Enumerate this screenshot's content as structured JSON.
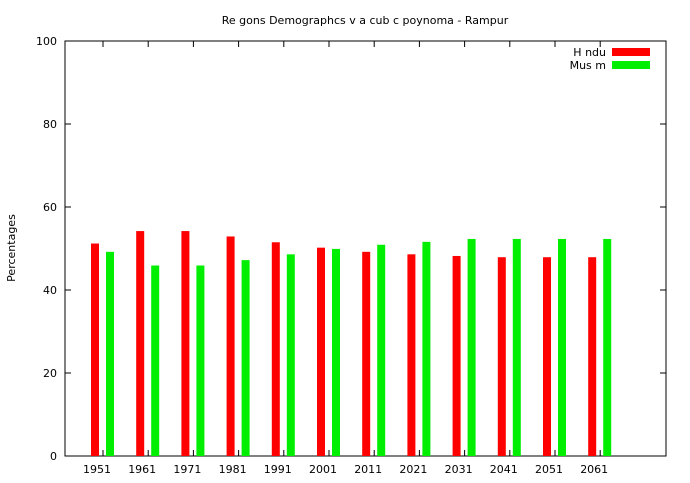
{
  "chart_data": {
    "type": "bar",
    "title": "Re gons Demographcs v a cub c poynoma - Rampur",
    "ylabel": "Percentages",
    "xlabel": "",
    "ylim": [
      0,
      100
    ],
    "yticks": [
      0,
      20,
      40,
      60,
      80,
      100
    ],
    "categories": [
      "1951",
      "1961",
      "1971",
      "1981",
      "1991",
      "2001",
      "2011",
      "2021",
      "2031",
      "2041",
      "2051",
      "2061"
    ],
    "legend_position": "top-right",
    "grid": false,
    "series": [
      {
        "name": "H ndu",
        "color": "#ff0000",
        "values": [
          51.2,
          54.2,
          54.2,
          52.9,
          51.5,
          50.2,
          49.2,
          48.6,
          48.2,
          47.9,
          47.9,
          47.9
        ]
      },
      {
        "name": "Mus m",
        "color": "#00ee00",
        "values": [
          49.2,
          45.9,
          45.9,
          47.2,
          48.6,
          49.9,
          50.9,
          51.6,
          52.3,
          52.3,
          52.3,
          52.3
        ]
      }
    ]
  }
}
